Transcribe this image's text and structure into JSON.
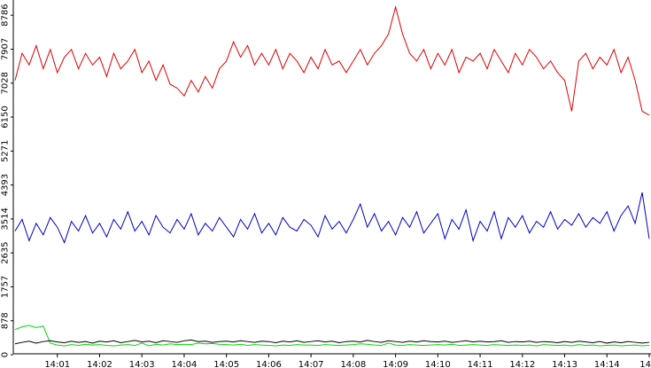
{
  "chart_data": {
    "type": "line",
    "categories": [
      null,
      null,
      null,
      null,
      null,
      null,
      "14:01",
      null,
      null,
      null,
      null,
      null,
      "14:02",
      null,
      null,
      null,
      null,
      null,
      "14:03",
      null,
      null,
      null,
      null,
      null,
      "14:04",
      null,
      null,
      null,
      null,
      null,
      "14:05",
      null,
      null,
      null,
      null,
      null,
      "14:06",
      null,
      null,
      null,
      null,
      null,
      "14:07",
      null,
      null,
      null,
      null,
      null,
      "14:08",
      null,
      null,
      null,
      null,
      null,
      "14:09",
      null,
      null,
      null,
      null,
      null,
      "14:10",
      null,
      null,
      null,
      null,
      null,
      "14:11",
      null,
      null,
      null,
      null,
      null,
      "14:12",
      null,
      null,
      null,
      null,
      null,
      "14:13",
      null,
      null,
      null,
      null,
      null,
      "14:14",
      null,
      null,
      null,
      null,
      null,
      "14"
    ],
    "series": [
      {
        "color": "#e00000",
        "values": [
          7100,
          7800,
          7500,
          8000,
          7400,
          7900,
          7300,
          7700,
          7900,
          7400,
          7800,
          7500,
          7700,
          7200,
          7800,
          7400,
          7600,
          7900,
          7300,
          7600,
          7100,
          7500,
          7000,
          6900,
          6700,
          7100,
          6800,
          7200,
          6900,
          7400,
          7600,
          8100,
          7700,
          8000,
          7500,
          7800,
          7500,
          7900,
          7400,
          7800,
          7600,
          7300,
          7700,
          7400,
          7900,
          7500,
          7600,
          7300,
          7600,
          7900,
          7500,
          7800,
          8000,
          8300,
          9000,
          8300,
          7800,
          7600,
          7900,
          7400,
          7800,
          7500,
          7900,
          7300,
          7700,
          7600,
          7800,
          7400,
          7900,
          7600,
          7300,
          7800,
          7500,
          7900,
          7700,
          7400,
          7600,
          7300,
          7100,
          6300,
          7600,
          7800,
          7400,
          7700,
          7500,
          7900,
          7300,
          7700,
          7100,
          6300,
          6200
        ]
      },
      {
        "color": "#0000c8",
        "values": [
          3200,
          3500,
          2950,
          3400,
          3100,
          3550,
          3300,
          2900,
          3450,
          3200,
          3600,
          3150,
          3400,
          3050,
          3500,
          3250,
          3700,
          3200,
          3450,
          3100,
          3600,
          3300,
          3150,
          3500,
          3250,
          3650,
          3100,
          3400,
          3200,
          3550,
          3300,
          3050,
          3500,
          3250,
          3650,
          3150,
          3400,
          3100,
          3550,
          3300,
          3200,
          3500,
          3350,
          3050,
          3600,
          3250,
          3450,
          3150,
          3500,
          3900,
          3300,
          3650,
          3200,
          3450,
          3100,
          3550,
          3300,
          3700,
          3150,
          3400,
          3650,
          3000,
          3500,
          3250,
          3750,
          2950,
          3450,
          3200,
          3700,
          3000,
          3550,
          3300,
          3600,
          3150,
          3450,
          3300,
          3700,
          3250,
          3500,
          3350,
          3650,
          3300,
          3550,
          3400,
          3700,
          3200,
          3600,
          3850,
          3400,
          4200,
          3000
        ]
      },
      {
        "color": "#00dd00",
        "values": [
          650,
          720,
          760,
          700,
          740,
          300,
          250,
          230,
          260,
          240,
          270,
          250,
          260,
          240,
          230,
          250,
          260,
          240,
          300,
          230,
          270,
          250,
          280,
          260,
          270,
          260,
          300,
          280,
          290,
          270,
          260,
          250,
          270,
          240,
          260,
          250,
          240,
          230,
          250,
          240,
          260,
          250,
          250,
          240,
          260,
          250,
          240,
          250,
          260,
          280,
          270,
          250,
          240,
          300,
          250,
          240,
          260,
          250,
          240,
          250,
          260,
          250,
          270,
          240,
          250,
          260,
          250,
          240,
          260,
          250,
          240,
          250,
          240,
          250,
          230,
          260,
          250,
          240,
          250,
          230,
          260,
          240,
          250,
          230,
          240,
          250,
          230,
          240,
          250,
          230,
          240
        ]
      },
      {
        "color": "#000000",
        "values": [
          280,
          320,
          350,
          300,
          340,
          360,
          330,
          310,
          350,
          320,
          340,
          300,
          350,
          330,
          360,
          310,
          340,
          370,
          330,
          350,
          310,
          360,
          340,
          320,
          360,
          380,
          340,
          350,
          320,
          340,
          350,
          330,
          360,
          340,
          320,
          350,
          340,
          310,
          350,
          330,
          360,
          320,
          340,
          360,
          330,
          350,
          310,
          340,
          350,
          330,
          370,
          340,
          320,
          360,
          340,
          320,
          350,
          330,
          360,
          340,
          330,
          350,
          320,
          340,
          360,
          330,
          350,
          330,
          340,
          360,
          320,
          340,
          330,
          350,
          320,
          340,
          330,
          310,
          340,
          320,
          350,
          330,
          310,
          340,
          300,
          330,
          310,
          340,
          320,
          300,
          320
        ]
      }
    ],
    "ylim": [
      0,
      9180
    ],
    "yticks": [
      0,
      878,
      1757,
      2635,
      3514,
      4393,
      5271,
      6150,
      7028,
      7907,
      8786
    ]
  }
}
